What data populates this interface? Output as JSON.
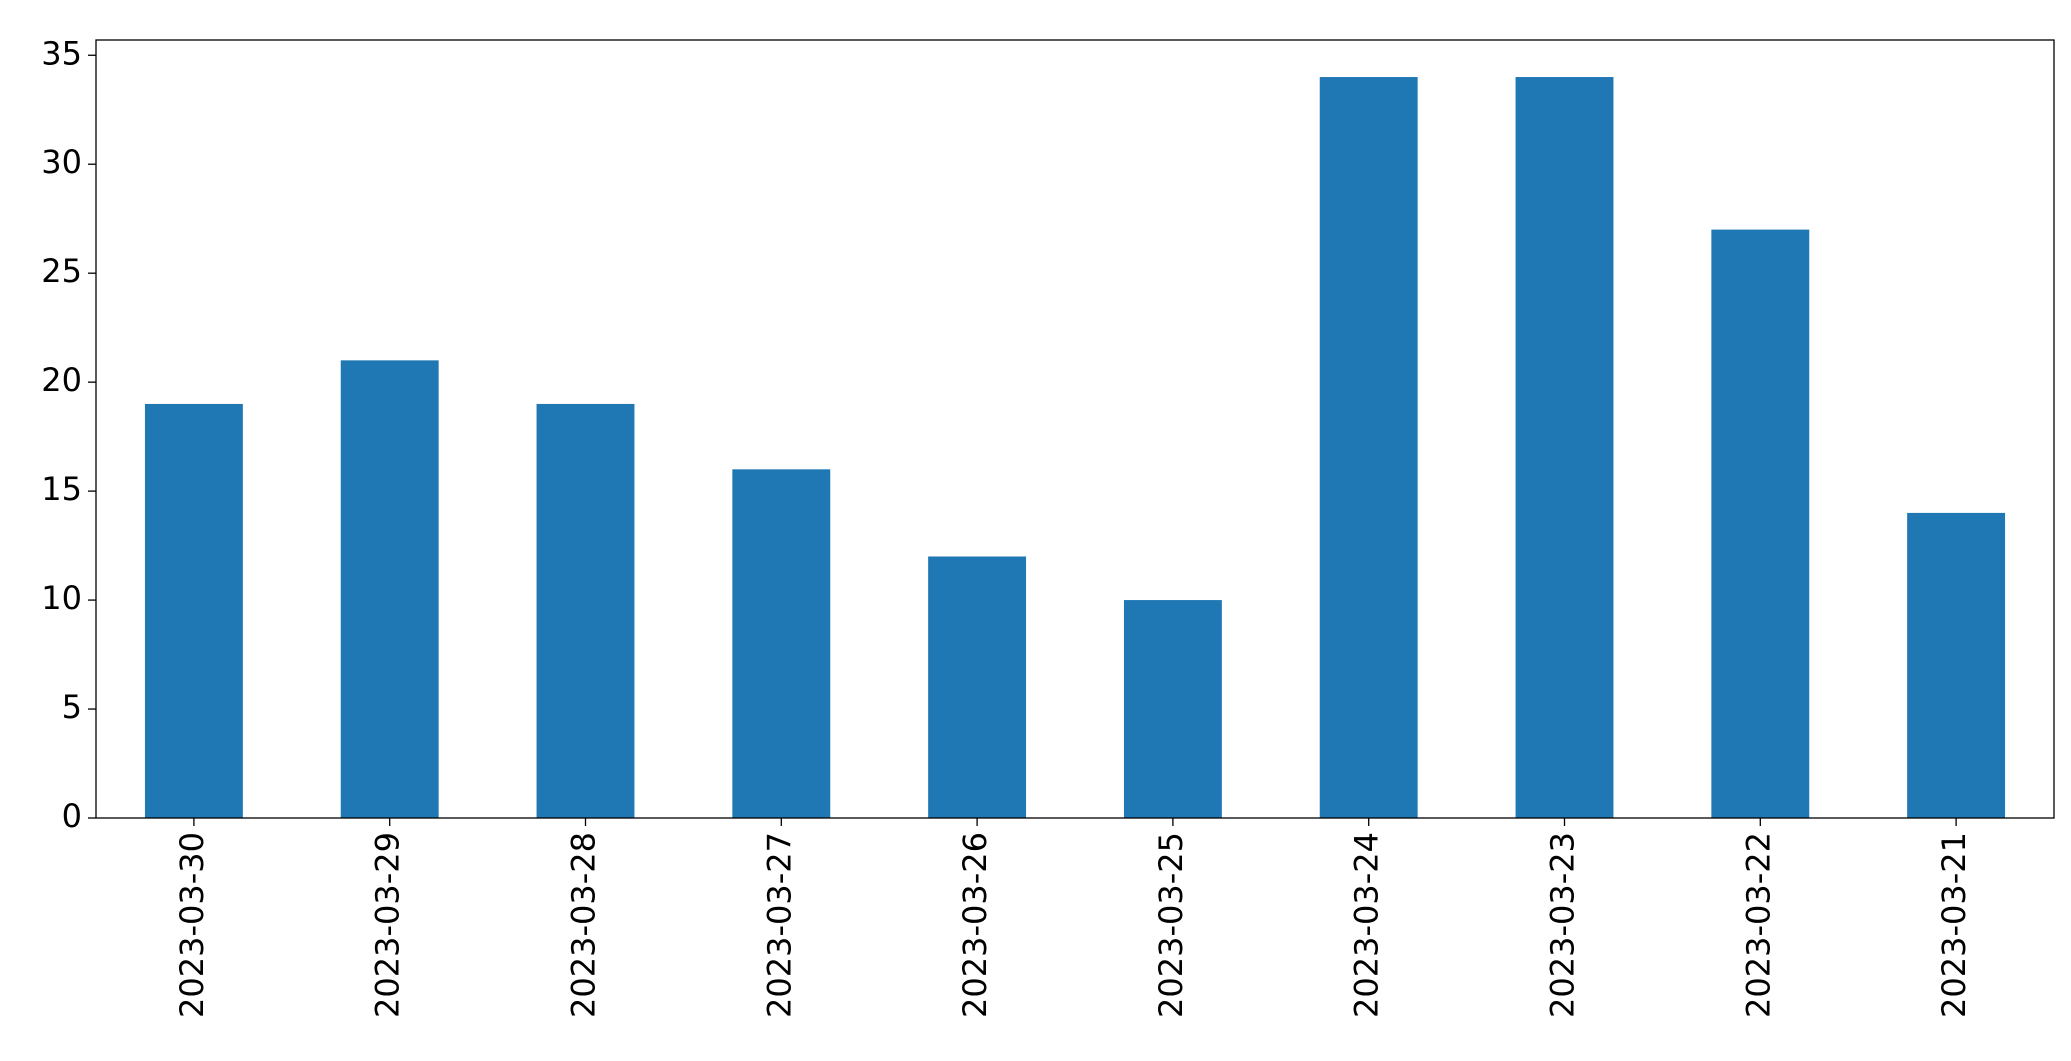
{
  "chart_data": {
    "type": "bar",
    "categories": [
      "2023-03-30",
      "2023-03-29",
      "2023-03-28",
      "2023-03-27",
      "2023-03-26",
      "2023-03-25",
      "2023-03-24",
      "2023-03-23",
      "2023-03-22",
      "2023-03-21"
    ],
    "values": [
      19,
      21,
      19,
      16,
      12,
      10,
      34,
      34,
      27,
      14
    ],
    "color": "#1f77b4",
    "ylim": [
      0,
      35.7
    ],
    "yticks": [
      0,
      5,
      10,
      15,
      20,
      25,
      30,
      35
    ],
    "grid": false
  }
}
